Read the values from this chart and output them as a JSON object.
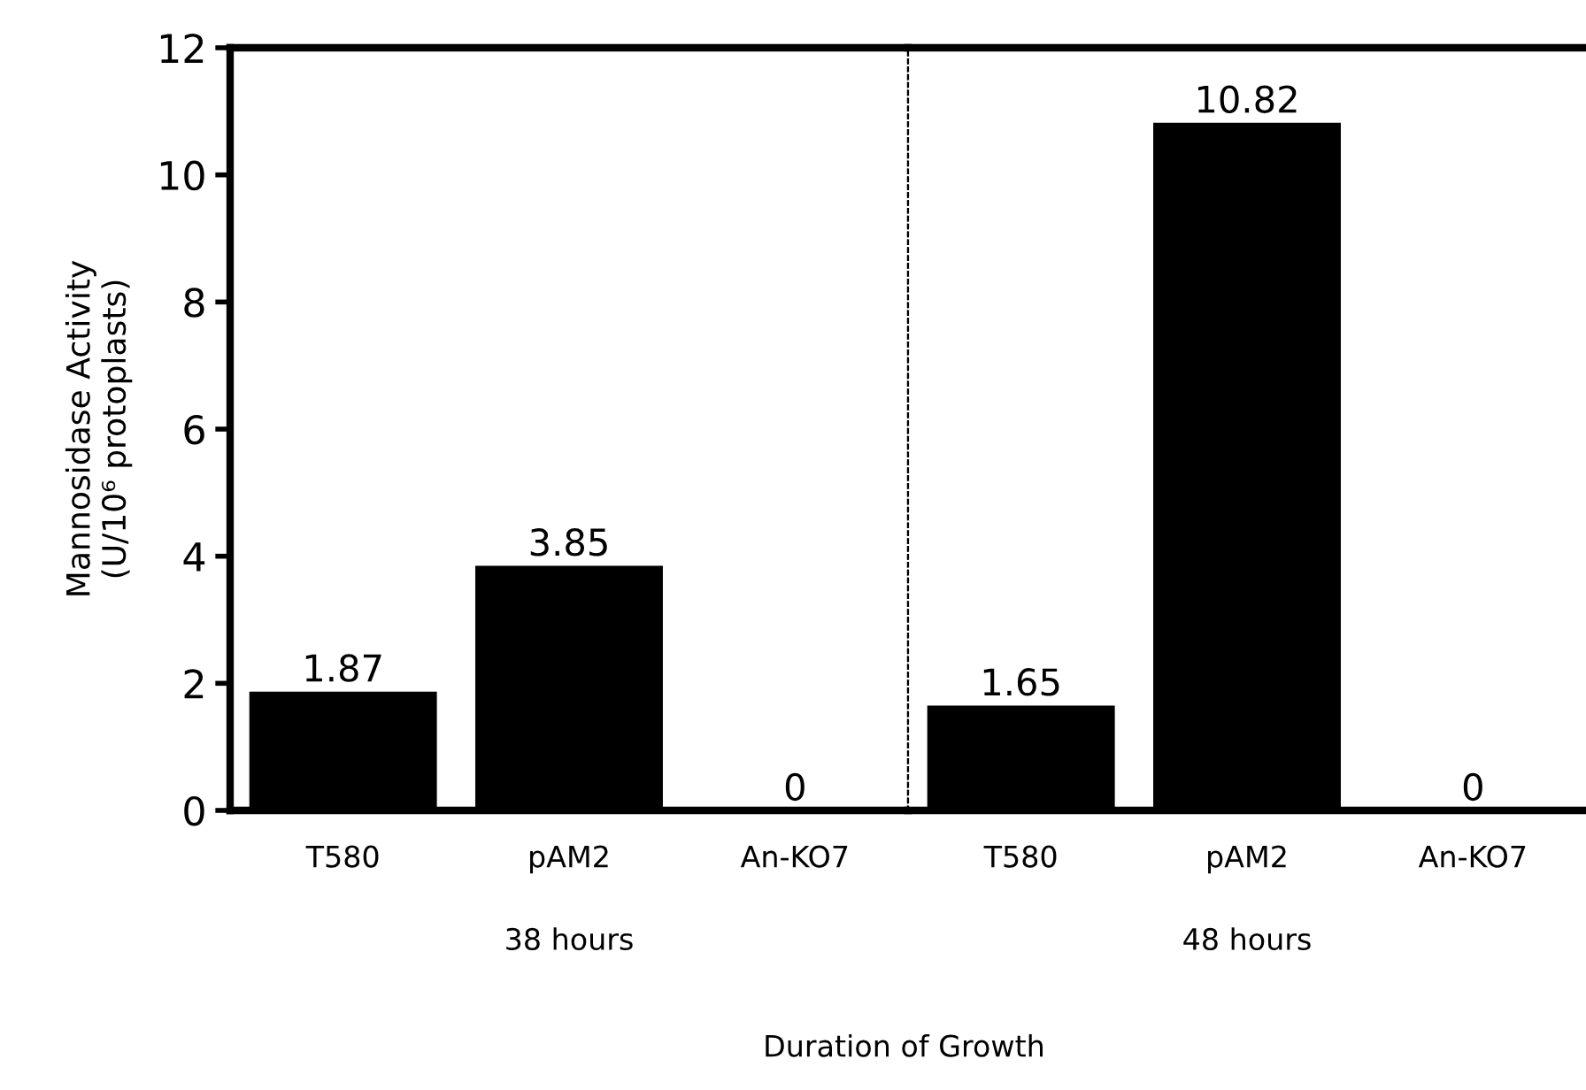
{
  "chart_data": [
    {
      "type": "bar",
      "categories": [
        "T580",
        "pAM2",
        "An-KO7"
      ],
      "values": [
        1.87,
        3.85,
        0
      ],
      "color": "#000000",
      "xlabel": "38 hours",
      "ylabel": "Mannosidase Activity\n(U/10⁶ protoplasts)",
      "ylim": [
        0,
        12
      ],
      "yticks": [
        0,
        2,
        4,
        6,
        8,
        10,
        12
      ],
      "data_labels": true,
      "grid": false,
      "legend": false
    },
    {
      "type": "bar",
      "categories": [
        "T580",
        "pAM2",
        "An-KO7"
      ],
      "values": [
        1.65,
        10.82,
        0
      ],
      "color": "#000000",
      "xlabel": "48 hours",
      "ylim": [
        0,
        12
      ],
      "yticks": [
        0,
        2,
        4,
        6,
        8,
        10,
        12
      ],
      "tick_labels": "x",
      "data_labels": true,
      "grid": false,
      "legend": false,
      "annotations": [
        "Duration of Growth"
      ]
    }
  ]
}
